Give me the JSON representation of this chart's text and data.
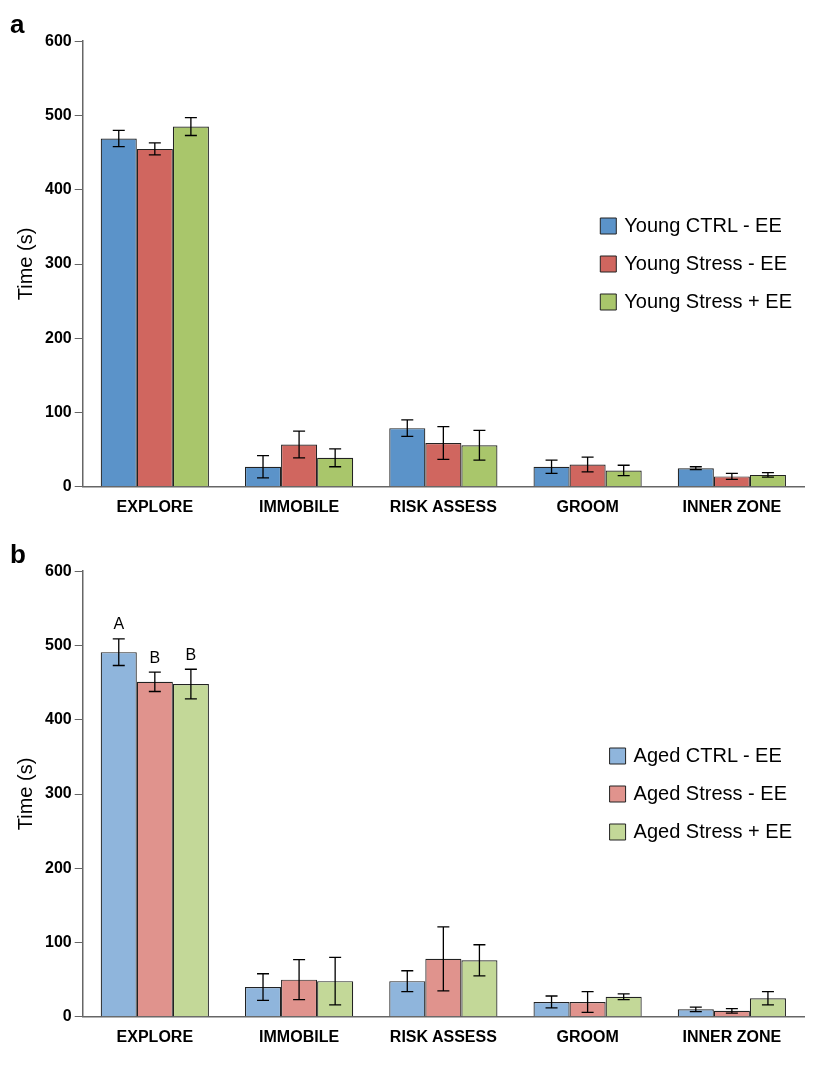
{
  "chart_data": [
    {
      "type": "bar",
      "title": "a",
      "ylabel": "Time (s)",
      "categories": [
        "EXPLORE",
        "IMMOBILE",
        "RISK ASSESS",
        "GROOM",
        "INNER ZONE"
      ],
      "ylim": [
        0,
        600
      ],
      "yticks": [
        0,
        100,
        200,
        300,
        400,
        500,
        600
      ],
      "grid": false,
      "legend": "right",
      "series": [
        {
          "name": "Young CTRL - EE",
          "color": "#5b93c9",
          "values": [
            469,
            27,
            79,
            27,
            25
          ],
          "errors": [
            11,
            15,
            11,
            9,
            2
          ]
        },
        {
          "name": "Young Stress - EE",
          "color": "#d0665f",
          "values": [
            455,
            57,
            59,
            30,
            14
          ],
          "errors": [
            8,
            18,
            22,
            10,
            4
          ]
        },
        {
          "name": "Young Stress + EE",
          "color": "#a9c66b",
          "values": [
            485,
            39,
            56,
            22,
            16
          ],
          "errors": [
            12,
            12,
            20,
            7,
            3
          ]
        }
      ]
    },
    {
      "type": "bar",
      "title": "b",
      "ylabel": "Time (s)",
      "categories": [
        "EXPLORE",
        "IMMOBILE",
        "RISK ASSESS",
        "GROOM",
        "INNER ZONE"
      ],
      "ylim": [
        0,
        600
      ],
      "yticks": [
        0,
        100,
        200,
        300,
        400,
        500,
        600
      ],
      "grid": false,
      "legend": "right",
      "annotations": [
        "A",
        "B",
        "B"
      ],
      "series": [
        {
          "name": "Aged CTRL - EE",
          "color": "#8fb5dc",
          "values": [
            491,
            40,
            48,
            20,
            10
          ],
          "errors": [
            18,
            18,
            14,
            8,
            3
          ]
        },
        {
          "name": "Aged Stress - EE",
          "color": "#e0938d",
          "values": [
            451,
            50,
            78,
            20,
            8
          ],
          "errors": [
            13,
            27,
            43,
            14,
            3
          ]
        },
        {
          "name": "Aged Stress + EE",
          "color": "#c3d898",
          "values": [
            448,
            48,
            76,
            27,
            25
          ],
          "errors": [
            20,
            32,
            21,
            4,
            9
          ]
        }
      ]
    }
  ]
}
